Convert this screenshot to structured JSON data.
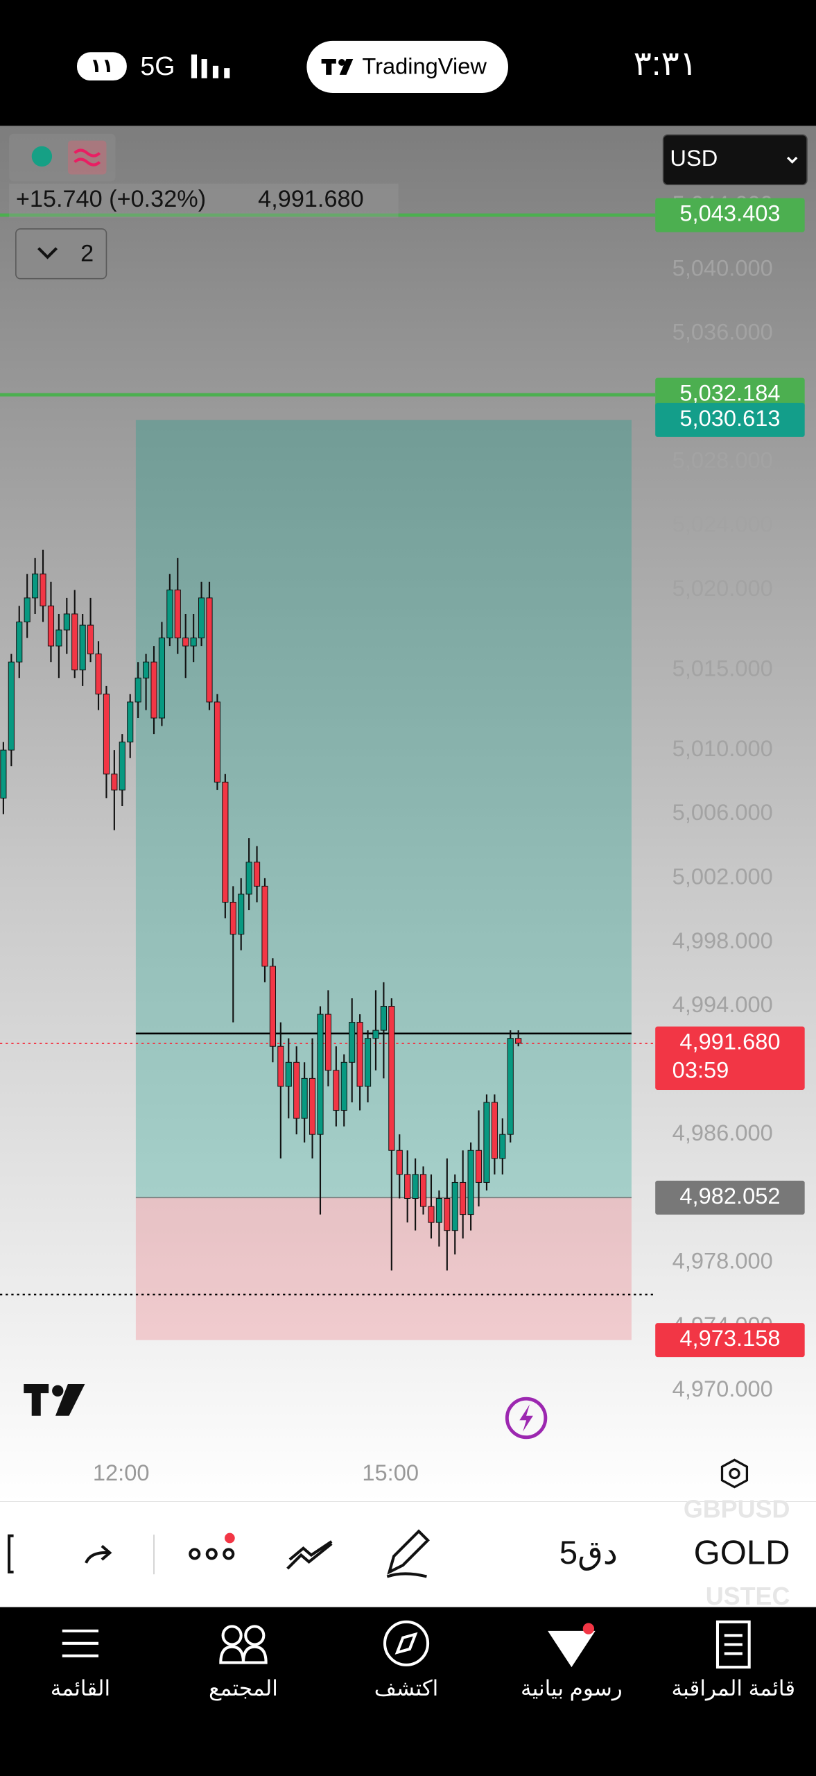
{
  "status_bar": {
    "battery": "١١",
    "network": "5G",
    "app": "TradingView",
    "time": "٣:٣١"
  },
  "chart_data": {
    "type": "candlestick",
    "legend_change": "+15.740 (+0.32%)",
    "legend_price": "4,991.680",
    "indicator_count": "2",
    "currency": "USD",
    "up_color": "#089981",
    "down_color": "#f23645",
    "ylim": [
      4966.31,
      5048.98
    ],
    "yticks": [
      {
        "value": 5044,
        "label": "5,044.000"
      },
      {
        "value": 5040,
        "label": "5,040.000"
      },
      {
        "value": 5036,
        "label": "5,036.000"
      },
      {
        "value": 5028,
        "label": "5,028.000"
      },
      {
        "value": 5024,
        "label": "5,024.000"
      },
      {
        "value": 5020,
        "label": "5,020.000"
      },
      {
        "value": 5015,
        "label": "5,015.000"
      },
      {
        "value": 5010,
        "label": "5,010.000"
      },
      {
        "value": 5006,
        "label": "5,006.000"
      },
      {
        "value": 5002,
        "label": "5,002.000"
      },
      {
        "value": 4998,
        "label": "4,998.000"
      },
      {
        "value": 4994,
        "label": "4,994.000"
      },
      {
        "value": 4986,
        "label": "4,986.000"
      },
      {
        "value": 4978,
        "label": "4,978.000"
      },
      {
        "value": 4974,
        "label": "4,974.000"
      },
      {
        "value": 4970,
        "label": "4,970.000"
      }
    ],
    "x_labels": [
      "12:00",
      "15:00"
    ],
    "alert_lines": [
      {
        "value": 5043.403,
        "label": "5,043.403",
        "color": "#4caf50"
      },
      {
        "value": 5032.184,
        "label": "5,032.184",
        "color": "#4caf50"
      }
    ],
    "position": {
      "target": {
        "value": 5030.613,
        "label": "5,030.613",
        "color": "#139e8a"
      },
      "entry": {
        "value": 4982.052,
        "label": "4,982.052",
        "color": "#787878"
      },
      "stop": {
        "value": 4973.158,
        "label": "4,973.158",
        "color": "#f23645"
      }
    },
    "last_price": {
      "value": 4991.68,
      "label": "4,991.680",
      "countdown": "03:59",
      "color": "#f23645"
    },
    "level_lines": [
      {
        "value": 4992.3,
        "color": "#000000",
        "dotted": false
      },
      {
        "value": 4976.0,
        "color": "#000000",
        "dotted": true
      }
    ],
    "candles": [
      [
        5007,
        5010.5,
        5006,
        5010
      ],
      [
        5010,
        5016,
        5009,
        5015.5
      ],
      [
        5015.5,
        5019,
        5014.5,
        5018
      ],
      [
        5018,
        5021,
        5017,
        5019.5
      ],
      [
        5019.5,
        5022,
        5018.5,
        5021
      ],
      [
        5021,
        5022.5,
        5018,
        5019
      ],
      [
        5019,
        5020.5,
        5015.5,
        5016.5
      ],
      [
        5016.5,
        5018.5,
        5014.5,
        5017.5
      ],
      [
        5017.5,
        5019.5,
        5016,
        5018.5
      ],
      [
        5018.5,
        5020,
        5014.5,
        5015
      ],
      [
        5015,
        5018.5,
        5014,
        5017.8
      ],
      [
        5017.8,
        5019.5,
        5015.5,
        5016
      ],
      [
        5016,
        5016.8,
        5012.5,
        5013.5
      ],
      [
        5013.5,
        5014,
        5007,
        5008.5
      ],
      [
        5008.5,
        5010,
        5005,
        5007.5
      ],
      [
        5007.5,
        5011,
        5006.5,
        5010.5
      ],
      [
        5010.5,
        5013.5,
        5009.5,
        5013
      ],
      [
        5013,
        5015.5,
        5012,
        5014.5
      ],
      [
        5014.5,
        5016,
        5012.5,
        5015.5
      ],
      [
        5015.5,
        5016.5,
        5011,
        5012
      ],
      [
        5012,
        5018,
        5011.5,
        5017
      ],
      [
        5017,
        5021,
        5016.5,
        5020
      ],
      [
        5020,
        5022,
        5016,
        5017
      ],
      [
        5017,
        5018.5,
        5014.5,
        5016.5
      ],
      [
        5016.5,
        5018.5,
        5015.5,
        5017
      ],
      [
        5017,
        5020.5,
        5016.5,
        5019.5
      ],
      [
        5019.5,
        5020.5,
        5012.5,
        5013
      ],
      [
        5013,
        5013.5,
        5007.5,
        5008
      ],
      [
        5008,
        5008.5,
        4999.5,
        5000.5
      ],
      [
        5000.5,
        5001.5,
        4993,
        4998.5
      ],
      [
        4998.5,
        5002,
        4997.5,
        5001
      ],
      [
        5001,
        5004.5,
        5000,
        5003
      ],
      [
        5003,
        5004,
        5000.5,
        5001.5
      ],
      [
        5001.5,
        5002,
        4995.5,
        4996.5
      ],
      [
        4996.5,
        4997,
        4990.5,
        4991.5
      ],
      [
        4991.5,
        4993,
        4984.5,
        4989
      ],
      [
        4989,
        4992,
        4987,
        4990.5
      ],
      [
        4990.5,
        4991.5,
        4986,
        4987
      ],
      [
        4987,
        4990.5,
        4985.5,
        4989.5
      ],
      [
        4989.5,
        4992,
        4984.5,
        4986
      ],
      [
        4986,
        4994,
        4981,
        4993.5
      ],
      [
        4993.5,
        4995,
        4989,
        4990
      ],
      [
        4990,
        4991.5,
        4986.5,
        4987.5
      ],
      [
        4987.5,
        4991,
        4986.5,
        4990.5
      ],
      [
        4990.5,
        4994.5,
        4988,
        4993
      ],
      [
        4993,
        4993.5,
        4987.5,
        4989
      ],
      [
        4989,
        4992.5,
        4988,
        4992
      ],
      [
        4992,
        4995,
        4990,
        4992.5
      ],
      [
        4992.5,
        4995.5,
        4989.5,
        4994
      ],
      [
        4994,
        4994.5,
        4977.5,
        4985
      ],
      [
        4985,
        4986,
        4982,
        4983.5
      ],
      [
        4983.5,
        4985,
        4980.5,
        4982
      ],
      [
        4982,
        4984.5,
        4980,
        4983.5
      ],
      [
        4983.5,
        4984,
        4981,
        4981.5
      ],
      [
        4981.5,
        4983.5,
        4979.5,
        4980.5
      ],
      [
        4980.5,
        4982.5,
        4979,
        4982
      ],
      [
        4982,
        4984.5,
        4977.5,
        4980
      ],
      [
        4980,
        4983.5,
        4978.5,
        4983
      ],
      [
        4983,
        4985,
        4979.5,
        4981
      ],
      [
        4981,
        4985.5,
        4980,
        4985
      ],
      [
        4985,
        4987.5,
        4981.5,
        4983
      ],
      [
        4983,
        4988.5,
        4982.5,
        4988
      ],
      [
        4988,
        4988.5,
        4983.5,
        4984.5
      ],
      [
        4984.5,
        4987,
        4983.5,
        4986
      ],
      [
        4986,
        4992.5,
        4985.5,
        4992
      ],
      [
        4992,
        4992.5,
        4991.5,
        4991.7
      ]
    ]
  },
  "toolbar": {
    "symbol": "GOLD",
    "interval": "5دق",
    "symbol_above": "GBPUSD",
    "symbol_below": "USTEC"
  },
  "nav": [
    "قائمة المراقبة",
    "رسوم بيانية",
    "اكتشف",
    "المجتمع",
    "القائمة"
  ]
}
